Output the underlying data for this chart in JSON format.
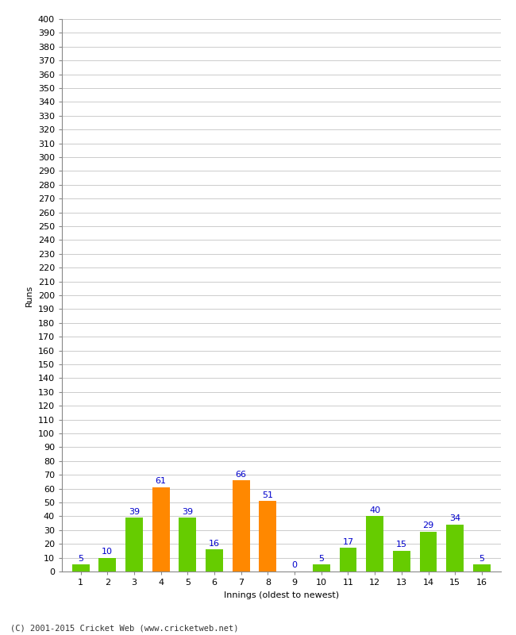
{
  "xlabel": "Innings (oldest to newest)",
  "ylabel": "Runs",
  "innings": [
    1,
    2,
    3,
    4,
    5,
    6,
    7,
    8,
    9,
    10,
    11,
    12,
    13,
    14,
    15,
    16
  ],
  "values": [
    5,
    10,
    39,
    61,
    39,
    16,
    66,
    51,
    0,
    5,
    17,
    40,
    15,
    29,
    34,
    5
  ],
  "bar_colors": [
    "#66cc00",
    "#66cc00",
    "#66cc00",
    "#ff8800",
    "#66cc00",
    "#66cc00",
    "#ff8800",
    "#ff8800",
    "#66cc00",
    "#66cc00",
    "#66cc00",
    "#66cc00",
    "#66cc00",
    "#66cc00",
    "#66cc00",
    "#66cc00"
  ],
  "ylim": [
    0,
    400
  ],
  "yticks": [
    0,
    10,
    20,
    30,
    40,
    50,
    60,
    70,
    80,
    90,
    100,
    110,
    120,
    130,
    140,
    150,
    160,
    170,
    180,
    190,
    200,
    210,
    220,
    230,
    240,
    250,
    260,
    270,
    280,
    290,
    300,
    310,
    320,
    330,
    340,
    350,
    360,
    370,
    380,
    390,
    400
  ],
  "label_color": "#0000cc",
  "footer": "(C) 2001-2015 Cricket Web (www.cricketweb.net)",
  "background_color": "#ffffff",
  "grid_color": "#cccccc",
  "bar_width": 0.65,
  "tick_fontsize": 8,
  "label_fontsize": 8
}
